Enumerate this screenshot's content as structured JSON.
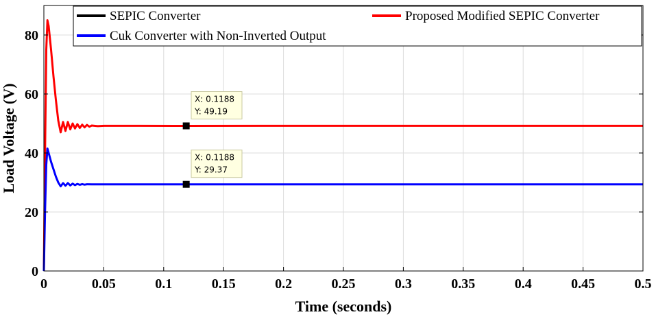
{
  "chart_data": {
    "type": "line",
    "xlabel": "Time (seconds)",
    "ylabel": "Load Voltage (V)",
    "xlim": [
      0,
      0.5
    ],
    "ylim": [
      0,
      90
    ],
    "xticks": [
      0,
      0.05,
      0.1,
      0.15,
      0.2,
      0.25,
      0.3,
      0.35,
      0.4,
      0.45,
      0.5
    ],
    "xtick_labels": [
      "0",
      "0.05",
      "0.1",
      "0.15",
      "0.2",
      "0.25",
      "0.3",
      "0.35",
      "0.4",
      "0.45",
      "0.5"
    ],
    "yticks": [
      0,
      20,
      40,
      60,
      80
    ],
    "ytick_labels": [
      "0",
      "20",
      "40",
      "60",
      "80"
    ],
    "grid": true,
    "legend_position": "top",
    "series": [
      {
        "name": "SEPIC Converter",
        "color": "#000000",
        "x": [],
        "y": []
      },
      {
        "name": "Proposed Modified SEPIC Converter",
        "color": "#ff0000",
        "x": [
          0,
          0.001,
          0.002,
          0.003,
          0.004,
          0.006,
          0.008,
          0.01,
          0.012,
          0.014,
          0.016,
          0.018,
          0.02,
          0.022,
          0.024,
          0.026,
          0.028,
          0.03,
          0.032,
          0.034,
          0.036,
          0.038,
          0.04,
          0.045,
          0.05,
          0.06,
          0.08,
          0.1188,
          0.2,
          0.3,
          0.4,
          0.5
        ],
        "y": [
          0,
          40,
          75,
          85,
          83,
          75,
          66,
          58,
          51,
          47,
          50.5,
          47.5,
          50.5,
          48,
          50,
          48.3,
          49.8,
          48.5,
          49.6,
          48.7,
          49.5,
          48.9,
          49.3,
          49.1,
          49.2,
          49.2,
          49.2,
          49.19,
          49.2,
          49.2,
          49.2,
          49.2
        ]
      },
      {
        "name": "Cuk Converter with Non-Inverted Output",
        "color": "#0000ff",
        "x": [
          0,
          0.001,
          0.002,
          0.003,
          0.004,
          0.006,
          0.008,
          0.01,
          0.012,
          0.014,
          0.016,
          0.018,
          0.02,
          0.022,
          0.024,
          0.026,
          0.028,
          0.03,
          0.032,
          0.034,
          0.036,
          0.04,
          0.045,
          0.05,
          0.06,
          0.08,
          0.1188,
          0.2,
          0.3,
          0.4,
          0.5
        ],
        "y": [
          0,
          20,
          36,
          41.5,
          40,
          37,
          34.5,
          32,
          30,
          28.7,
          29.8,
          28.9,
          29.8,
          29,
          29.6,
          29.1,
          29.5,
          29.2,
          29.45,
          29.25,
          29.4,
          29.35,
          29.37,
          29.37,
          29.37,
          29.37,
          29.37,
          29.37,
          29.37,
          29.37,
          29.37
        ]
      }
    ],
    "annotations": [
      {
        "x_label": "X: 0.1188",
        "y_label": "Y: 49.19",
        "x": 0.1188,
        "y": 49.19
      },
      {
        "x_label": "X: 0.1188",
        "y_label": "Y: 29.37",
        "x": 0.1188,
        "y": 29.37
      }
    ]
  }
}
